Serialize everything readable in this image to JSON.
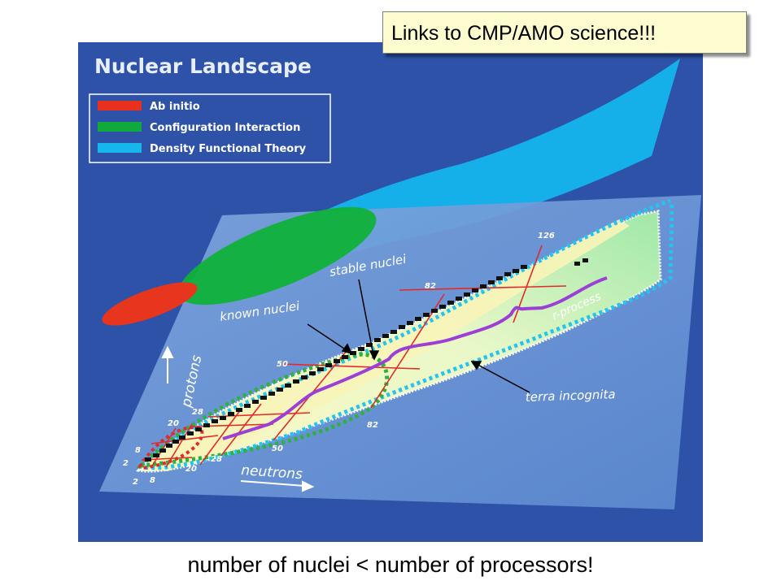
{
  "callout": {
    "text": "Links to CMP/AMO science!!!"
  },
  "caption": {
    "text": "number of nuclei < number of processors!"
  },
  "figure": {
    "title": "Nuclear Landscape",
    "legend": [
      {
        "label": "Ab initio",
        "color": "#e8311c"
      },
      {
        "label": "Configuration Interaction",
        "color": "#12a93c"
      },
      {
        "label": "Density Functional Theory",
        "color": "#16b7ec"
      }
    ],
    "annotations": {
      "stable_nuclei": "stable nuclei",
      "known_nuclei": "known nuclei",
      "terra_incognita": "terra incognita",
      "r_process": "r-process",
      "protons": "protons",
      "neutrons": "neutrons"
    },
    "magic_numbers": {
      "n126": "126",
      "n82_top": "82",
      "n50_top": "50",
      "n28_left": "28",
      "n20_left": "20",
      "n8_left": "8",
      "n2_left": "2",
      "n82_bottom": "82",
      "n50_bottom": "50",
      "n28_bottom": "28",
      "n20_bottom": "20",
      "n8_bottom": "8",
      "n2_bottom": "2"
    },
    "colors": {
      "background": "#2d52a8",
      "plane": "#6f9ad8",
      "known_region": "#f6f2b4",
      "unknown_region": "#c9f2c0",
      "stable_chain": "#111111",
      "magic_lines": "#e22a2a",
      "r_process": "#9b3fd6",
      "dft_boundary": "#25c4f0",
      "ci_boundary": "#2fb13f",
      "ab_initio_boundary": "#e22a2a"
    }
  }
}
